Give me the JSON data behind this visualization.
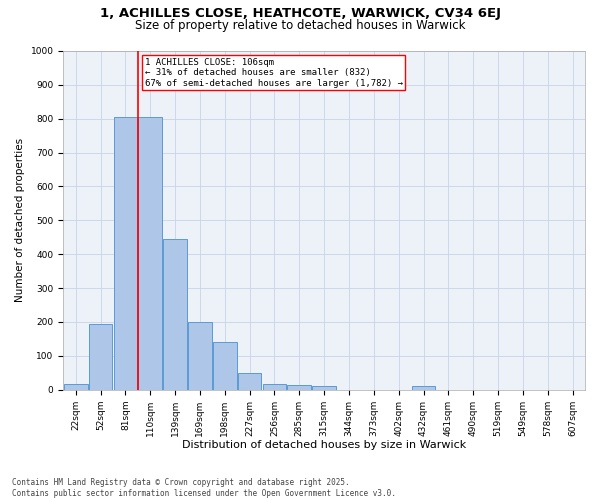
{
  "title1": "1, ACHILLES CLOSE, HEATHCOTE, WARWICK, CV34 6EJ",
  "title2": "Size of property relative to detached houses in Warwick",
  "xlabel": "Distribution of detached houses by size in Warwick",
  "ylabel": "Number of detached properties",
  "footnote": "Contains HM Land Registry data © Crown copyright and database right 2025.\nContains public sector information licensed under the Open Government Licence v3.0.",
  "bin_labels": [
    "22sqm",
    "52sqm",
    "81sqm",
    "110sqm",
    "139sqm",
    "169sqm",
    "198sqm",
    "227sqm",
    "256sqm",
    "285sqm",
    "315sqm",
    "344sqm",
    "373sqm",
    "402sqm",
    "432sqm",
    "461sqm",
    "490sqm",
    "519sqm",
    "549sqm",
    "578sqm",
    "607sqm"
  ],
  "bar_heights": [
    18,
    195,
    805,
    805,
    445,
    200,
    140,
    50,
    18,
    13,
    10,
    0,
    0,
    0,
    10,
    0,
    0,
    0,
    0,
    0,
    0
  ],
  "bar_color": "#aec6e8",
  "bar_edge_color": "#5b9bd5",
  "grid_color": "#c8d4e8",
  "vline_color": "red",
  "vline_bin": 3,
  "annotation_box_text": "1 ACHILLES CLOSE: 106sqm\n← 31% of detached houses are smaller (832)\n67% of semi-detached houses are larger (1,782) →",
  "ylim": [
    0,
    1000
  ],
  "yticks": [
    0,
    100,
    200,
    300,
    400,
    500,
    600,
    700,
    800,
    900,
    1000
  ],
  "bg_color": "#edf2f9",
  "title1_fontsize": 9.5,
  "title2_fontsize": 8.5,
  "xlabel_fontsize": 8,
  "ylabel_fontsize": 7.5,
  "tick_fontsize": 6.5,
  "annot_fontsize": 6.5,
  "footnote_fontsize": 5.5
}
